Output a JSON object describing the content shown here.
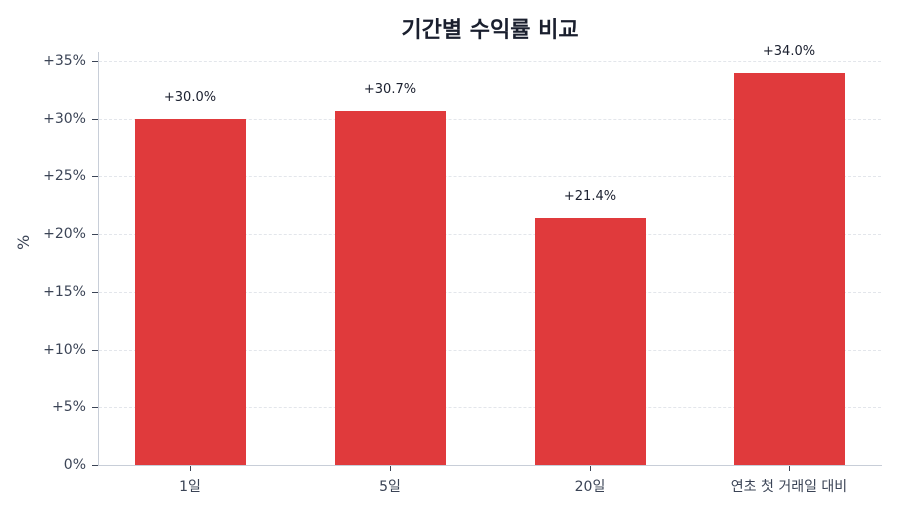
{
  "chart_data": {
    "type": "bar",
    "title": "기간별 수익률 비교",
    "xlabel": "",
    "ylabel": "%",
    "categories": [
      "1일",
      "5일",
      "20일",
      "연초 첫 거래일 대비"
    ],
    "values": [
      30.0,
      30.7,
      21.4,
      34.0
    ],
    "value_labels": [
      "+30.0%",
      "+30.7%",
      "+21.4%",
      "+34.0%"
    ],
    "ylim": [
      0,
      35
    ],
    "yticks": [
      0,
      5,
      10,
      15,
      20,
      25,
      30,
      35
    ],
    "ytick_labels": [
      "0%",
      "+5%",
      "+10%",
      "+15%",
      "+20%",
      "+25%",
      "+30%",
      "+35%"
    ],
    "grid": true,
    "grid_style": "dashed horizontal",
    "legend": null,
    "bar_color": "#e03a3c"
  }
}
